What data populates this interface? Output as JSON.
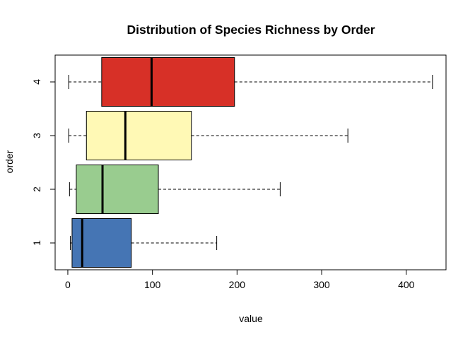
{
  "chart_data": {
    "type": "boxplot",
    "orientation": "horizontal",
    "title": "Distribution of Species Richness by Order",
    "xlabel": "value",
    "ylabel": "order",
    "xlim": [
      -15,
      447
    ],
    "xticks": [
      0,
      100,
      200,
      300,
      400
    ],
    "categories": [
      "1",
      "2",
      "3",
      "4"
    ],
    "series": [
      {
        "name": "1",
        "color": "#4575b4",
        "whisker_low": 3,
        "q1": 5,
        "median": 17,
        "q3": 75,
        "whisker_high": 176
      },
      {
        "name": "2",
        "color": "#99cc8f",
        "whisker_low": 2,
        "q1": 10,
        "median": 41,
        "q3": 107,
        "whisker_high": 251
      },
      {
        "name": "3",
        "color": "#fff9b5",
        "whisker_low": 1,
        "q1": 22,
        "median": 68,
        "q3": 146,
        "whisker_high": 331
      },
      {
        "name": "4",
        "color": "#d73027",
        "whisker_low": 1,
        "q1": 40,
        "median": 99,
        "q3": 197,
        "whisker_high": 431
      }
    ]
  }
}
